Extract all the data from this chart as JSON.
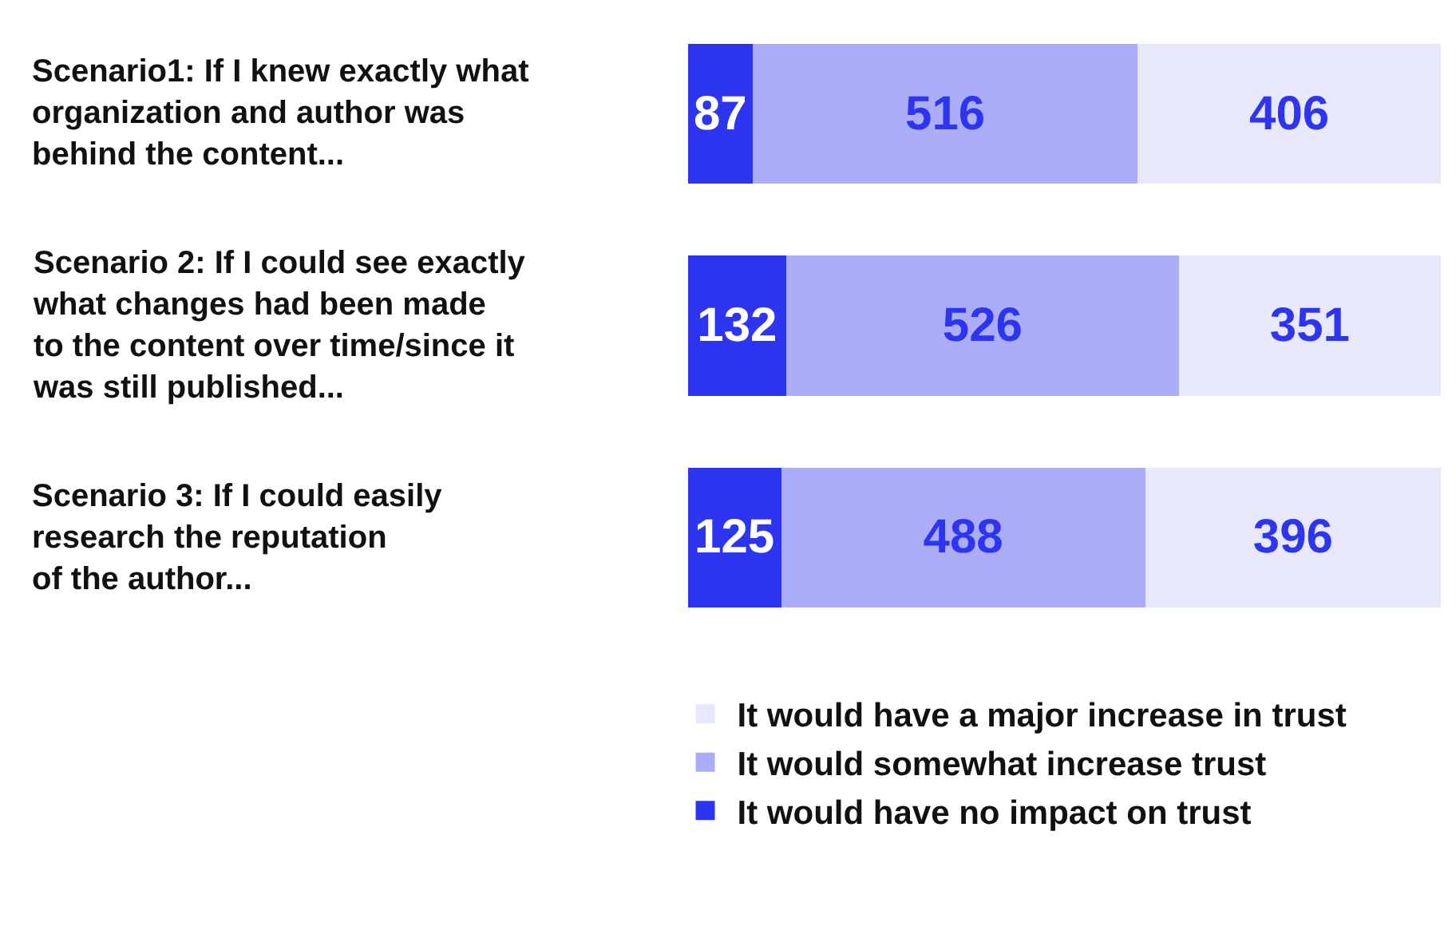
{
  "chart_data": {
    "type": "bar",
    "orientation": "horizontal",
    "stacked": true,
    "data_labels": true,
    "legend": "bottom",
    "tick_labels": false,
    "categories": [
      "Scenario1: If I knew exactly what\norganization and author was\nbehind the content...",
      "Scenario 2: If I could see exactly\nwhat changes had been made\nto the content over time/since it\nwas still published...",
      "Scenario 3: If I could easily\nresearch the reputation\nof the author..."
    ],
    "series": [
      {
        "name": "It would have no impact on trust",
        "color": "#2e35f0",
        "values": [
          87,
          132,
          125
        ]
      },
      {
        "name": "It would somewhat increase trust",
        "color": "#abadf8",
        "values": [
          516,
          526,
          488
        ]
      },
      {
        "name": "It would have a major increase in trust",
        "color": "#e8e8fd",
        "values": [
          406,
          351,
          396
        ]
      }
    ]
  }
}
